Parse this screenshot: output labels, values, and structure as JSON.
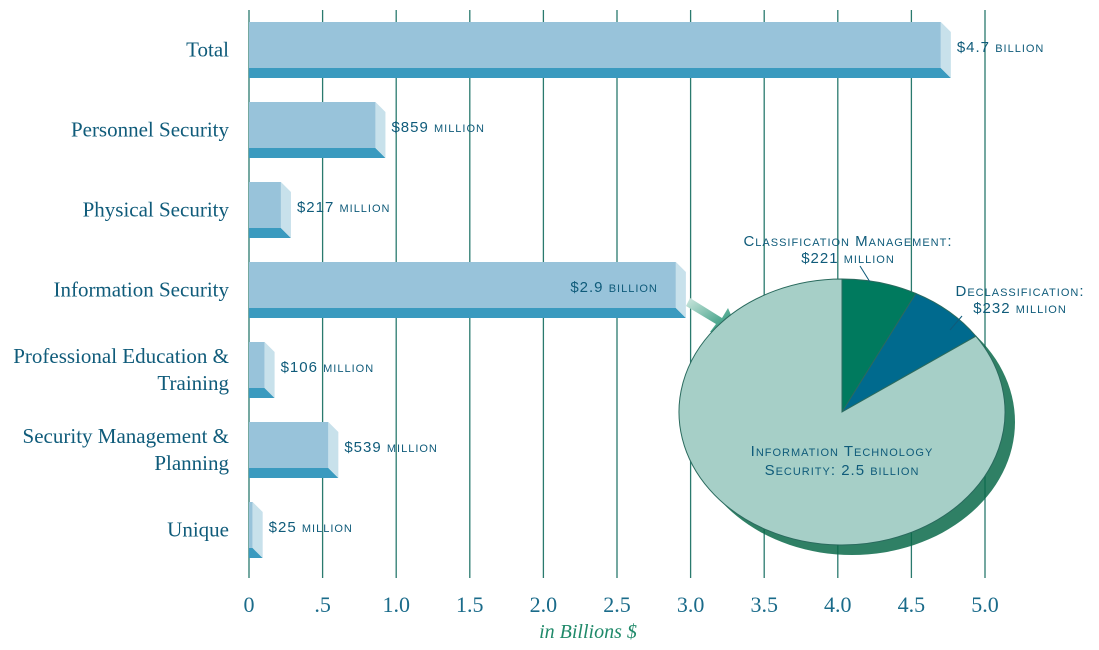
{
  "chart_data": [
    {
      "type": "bar",
      "categories": [
        "Total",
        "Personnel Security",
        "Physical Security",
        "Information Security",
        "Professional Education & Training",
        "Security Management & Planning",
        "Unique"
      ],
      "values": [
        4.7,
        0.859,
        0.217,
        2.9,
        0.106,
        0.539,
        0.025
      ],
      "value_labels": [
        "$4.7 billion",
        "$859 million",
        "$217 million",
        "$2.9 billion",
        "$106 million",
        "$539 million",
        "$25 million"
      ],
      "color": "#98c3da",
      "xlim": [
        0,
        5
      ],
      "xticks": [
        0,
        {
          "value": 0.5,
          "label": ".5"
        },
        {
          "value": 1,
          "label": "1.0"
        },
        1.5,
        {
          "value": 2,
          "label": "2.0"
        },
        2.5,
        {
          "value": 3,
          "label": "3.0"
        },
        3.5,
        {
          "value": 4,
          "label": "4.0"
        },
        4.5,
        {
          "value": 5,
          "label": "5.0"
        }
      ],
      "xlabel": "in Billions $",
      "grid": true
    },
    {
      "type": "pie",
      "categories": [
        "Classification Management:",
        "Declassification:",
        "Information Technology Security:"
      ],
      "values": [
        0.221,
        0.232,
        2.5
      ],
      "value_labels": [
        "$221 million",
        "$232 million",
        "2.5 billion"
      ],
      "colors": [
        "#007a5e",
        "#006a8e",
        "#a6cfc7"
      ]
    }
  ]
}
